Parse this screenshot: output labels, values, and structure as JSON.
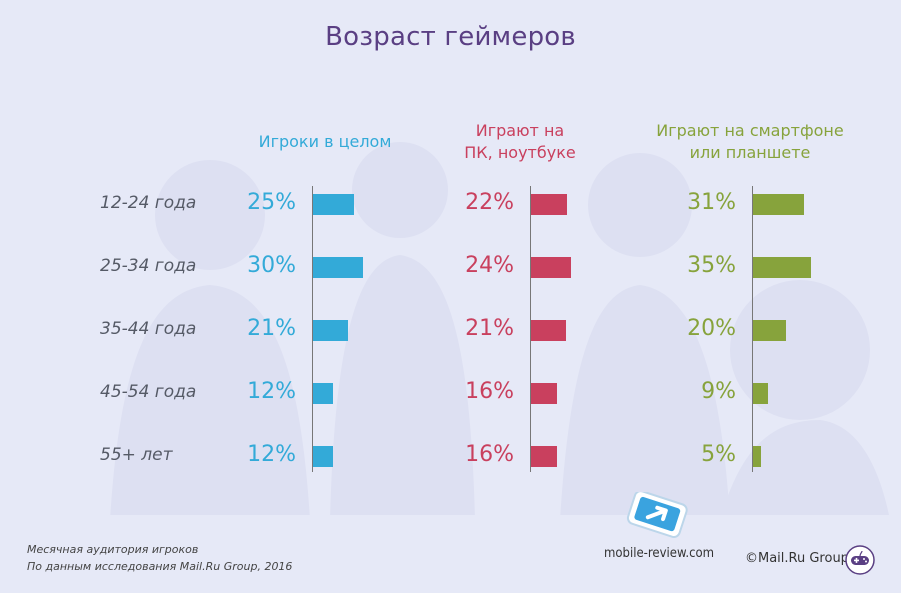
{
  "title": "Возраст геймеров",
  "colors": {
    "all": "#33aad8",
    "pc": "#c9405e",
    "mobile": "#87a33c",
    "title": "#5a3f83"
  },
  "chart_data": {
    "type": "bar",
    "title": "Возраст геймеров",
    "categories": [
      "12-24 года",
      "25-34 года",
      "35-44 года",
      "45-54 года",
      "55+ лет"
    ],
    "series": [
      {
        "name": "Игроки в целом",
        "values": [
          25,
          30,
          21,
          12,
          12
        ],
        "labels": [
          "25%",
          "30%",
          "21%",
          "12%",
          "12%"
        ]
      },
      {
        "name": "Играют на ПК, ноутбуке",
        "values": [
          22,
          24,
          21,
          16,
          16
        ],
        "labels": [
          "22%",
          "24%",
          "21%",
          "16%",
          "16%"
        ]
      },
      {
        "name": "Играют на смартфоне или планшете",
        "values": [
          31,
          35,
          20,
          9,
          5
        ],
        "labels": [
          "31%",
          "35%",
          "20%",
          "9%",
          "5%"
        ]
      }
    ],
    "headers": [
      {
        "line1": "Игроки в целом",
        "line2": ""
      },
      {
        "line1": "Играют на",
        "line2": "ПК, ноутбуке"
      },
      {
        "line1": "Играют на смартфоне",
        "line2": "или планшете"
      }
    ],
    "unit": "%"
  },
  "footer": {
    "line1": "Месячная аудитория игроков",
    "line2": "По данным исследования Mail.Ru Group, 2016"
  },
  "watermark": "mobile-review.com",
  "copyright": "©Mail.Ru Group"
}
